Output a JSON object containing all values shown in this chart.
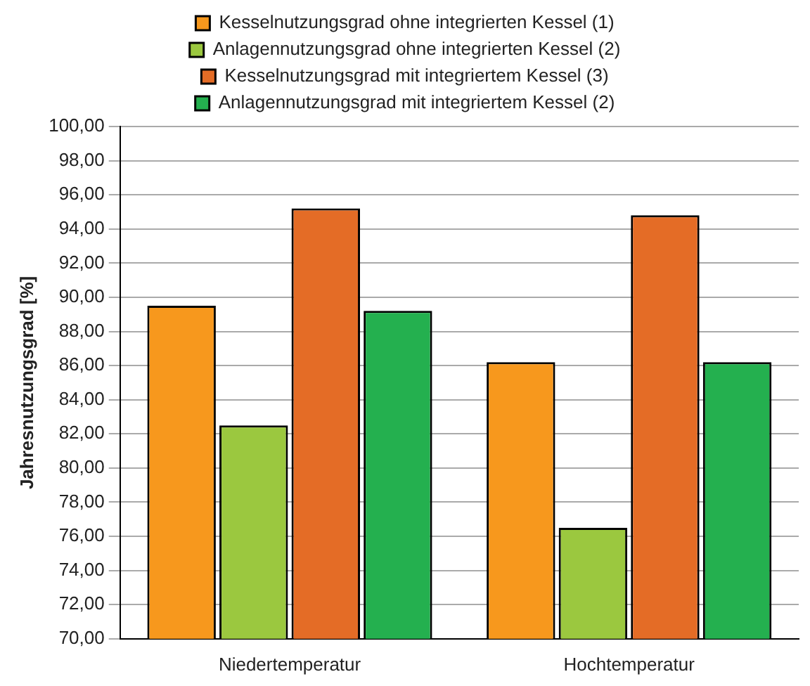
{
  "chart_data": {
    "type": "bar",
    "ylabel": "Jahresnutzungsgrad [%]",
    "categories": [
      "Niedertemperatur",
      "Hochtemperatur"
    ],
    "series": [
      {
        "name": "Kesselnutzungsgrad ohne integrierten Kessel (1)",
        "color": "#f7981d",
        "values": [
          89.5,
          86.2
        ]
      },
      {
        "name": "Anlagennutzungsgrad ohne integrierten Kessel (2)",
        "color": "#9bc83f",
        "values": [
          82.5,
          76.5
        ]
      },
      {
        "name": "Kesselnutzungsgrad mit integriertem Kessel (3)",
        "color": "#e46c26",
        "values": [
          95.2,
          94.8
        ]
      },
      {
        "name": "Anlagennutzungsgrad mit integriertem Kessel (2)",
        "color": "#24b04f",
        "values": [
          89.2,
          86.2
        ]
      }
    ],
    "ylim": [
      70,
      100
    ],
    "yticks": [
      {
        "value": 70,
        "label": "70,00"
      },
      {
        "value": 72,
        "label": "72,00"
      },
      {
        "value": 74,
        "label": "74,00"
      },
      {
        "value": 76,
        "label": "76,00"
      },
      {
        "value": 78,
        "label": "78,00"
      },
      {
        "value": 80,
        "label": "80,00"
      },
      {
        "value": 82,
        "label": "82,00"
      },
      {
        "value": 84,
        "label": "84,00"
      },
      {
        "value": 86,
        "label": "86,00"
      },
      {
        "value": 88,
        "label": "88,00"
      },
      {
        "value": 90,
        "label": "90,00"
      },
      {
        "value": 92,
        "label": "92,00"
      },
      {
        "value": 94,
        "label": "94,00"
      },
      {
        "value": 96,
        "label": "96,00"
      },
      {
        "value": 98,
        "label": "98,00"
      },
      {
        "value": 100,
        "label": "100,00"
      }
    ],
    "grid": "y",
    "legend": "top"
  }
}
